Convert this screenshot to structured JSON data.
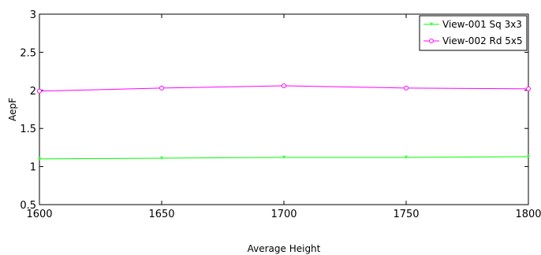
{
  "chart_data": {
    "type": "line",
    "title": "",
    "xlabel": "Average Height",
    "ylabel": "AepF",
    "x": [
      1600,
      1650,
      1700,
      1750,
      1800
    ],
    "xlim": [
      1600,
      1800
    ],
    "ylim": [
      0.5,
      3
    ],
    "xticks": [
      "1600",
      "1650",
      "1700",
      "1750",
      "1800"
    ],
    "yticks": [
      "0.5",
      "1",
      "1.5",
      "2",
      "2.5",
      "3"
    ],
    "grid": false,
    "legend_position": "top-right",
    "series": [
      {
        "name": "View-001 Sq 3x3",
        "values": [
          1.1,
          1.11,
          1.12,
          1.12,
          1.13
        ],
        "color": "#00ff00",
        "marker": "asterisk"
      },
      {
        "name": "View-002 Rd 5x5",
        "values": [
          1.99,
          2.03,
          2.06,
          2.03,
          2.02
        ],
        "color": "#ff00ff",
        "marker": "circle"
      }
    ]
  }
}
